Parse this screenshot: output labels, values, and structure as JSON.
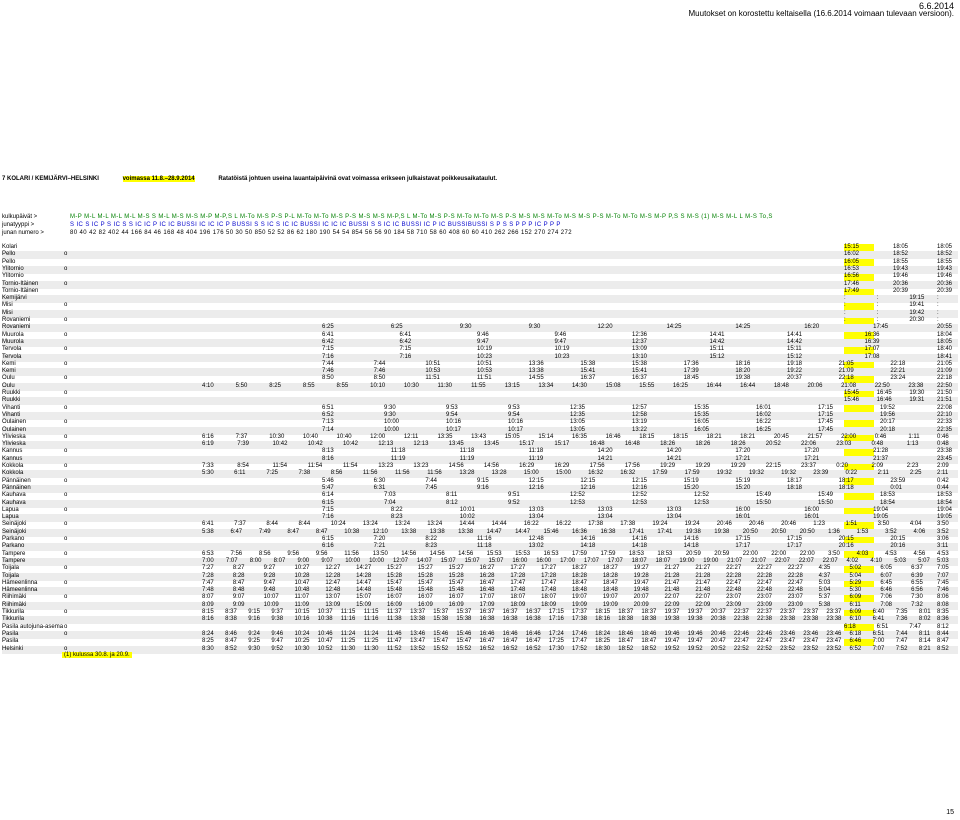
{
  "top": {
    "date": "6.6.2014",
    "note_line1": "Muutokset on korostettu keltaisella (16.6.2014 voimaan tulevaan versioon).",
    "note_line2": ""
  },
  "header": {
    "route": "7 KOLARI / KEMIJÄRVI–HELSINKI",
    "validity": "voimassa 11.8.–28.9.2014",
    "notice": "Ratatöistä johtuen useina lauantaipäivinä ovat voimassa erikseen julkaistavat poikkeusaikataulut."
  },
  "info": {
    "days_label": "kulkupäivät >",
    "types_label": "junatyyppi >",
    "numbers_label": "junan numero >",
    "days": "M-P M-L M-L M-L M-L M-S S M-L M-S M-S M-P M-P,S L M-To M-S P-S P-L M-To M-To M-S P-S M-S M-S M-P,S L M-To M-S P-S M-To M-To M-S P-S M-S M-S M-To M-S M-S P-S M-To M-To M-S M-P P,S S M-S (1) M-S M-L L M-S To,S",
    "types": "S IC S IC P S IC S S IC IC P IC IC BUSSI IC IC IC P BUSSI S S IC S IC IC BUSSI IC IC IC BUSSI S S IC IC BUSSI IC P IC BUSSIBUSSI S P S S P P P IC P P P",
    "numbers": "80 40 42 82 402 44 166 84 46 168 48 404 196 176 50 30 50 850 52 52 86 62 180 190 54 54 854 56 56 90 184 58 710 58 60 408 60 60 410 262 266 152 270 274 272"
  },
  "stations": [
    {
      "name": "Kolari",
      "o": ""
    },
    {
      "name": "Pello",
      "o": "o"
    },
    {
      "name": "Pello",
      "o": ""
    },
    {
      "name": "Ylitornio",
      "o": "o"
    },
    {
      "name": "Ylitornio",
      "o": ""
    },
    {
      "name": "Tornio-Itäinen",
      "o": "o"
    },
    {
      "name": "Tornio-Itäinen",
      "o": ""
    },
    {
      "name": "Kemijärvi",
      "o": ""
    },
    {
      "name": "Misi",
      "o": "o"
    },
    {
      "name": "Misi",
      "o": ""
    },
    {
      "name": "Rovaniemi",
      "o": "o"
    },
    {
      "name": "Rovaniemi",
      "o": ""
    },
    {
      "name": "Muurola",
      "o": "o"
    },
    {
      "name": "Muurola",
      "o": ""
    },
    {
      "name": "Tervola",
      "o": "o"
    },
    {
      "name": "Tervola",
      "o": ""
    },
    {
      "name": "Kemi",
      "o": "o"
    },
    {
      "name": "Kemi",
      "o": ""
    },
    {
      "name": "Oulu",
      "o": "o"
    },
    {
      "name": "Oulu",
      "o": ""
    },
    {
      "name": "Ruukki",
      "o": "o"
    },
    {
      "name": "Ruukki",
      "o": ""
    },
    {
      "name": "Vihanti",
      "o": "o"
    },
    {
      "name": "Vihanti",
      "o": ""
    },
    {
      "name": "Oulainen",
      "o": "o"
    },
    {
      "name": "Oulainen",
      "o": ""
    },
    {
      "name": "Ylivieska",
      "o": "o"
    },
    {
      "name": "Ylivieska",
      "o": ""
    },
    {
      "name": "Kannus",
      "o": "o"
    },
    {
      "name": "Kannus",
      "o": ""
    },
    {
      "name": "Kokkola",
      "o": "o"
    },
    {
      "name": "Kokkola",
      "o": ""
    },
    {
      "name": "Pännäinen",
      "o": "o"
    },
    {
      "name": "Pännäinen",
      "o": ""
    },
    {
      "name": "Kauhava",
      "o": "o"
    },
    {
      "name": "Kauhava",
      "o": ""
    },
    {
      "name": "Lapua",
      "o": "o"
    },
    {
      "name": "Lapua",
      "o": ""
    },
    {
      "name": "Seinäjoki",
      "o": "o"
    },
    {
      "name": "Seinäjoki",
      "o": ""
    },
    {
      "name": "Parkano",
      "o": "o"
    },
    {
      "name": "Parkano",
      "o": ""
    },
    {
      "name": "Tampere",
      "o": "o"
    },
    {
      "name": "Tampere",
      "o": ""
    },
    {
      "name": "Toijala",
      "o": "o"
    },
    {
      "name": "Toijala",
      "o": ""
    },
    {
      "name": "Hämeenlinna",
      "o": "o"
    },
    {
      "name": "Hämeenlinna",
      "o": ""
    },
    {
      "name": "Riihimäki",
      "o": "o"
    },
    {
      "name": "Riihimäki",
      "o": ""
    },
    {
      "name": "Tikkurila",
      "o": "o"
    },
    {
      "name": "Tikkurila",
      "o": ""
    },
    {
      "name": "Pasila autojuna-asema",
      "o": "o"
    },
    {
      "name": "Pasila",
      "o": "o"
    },
    {
      "name": "Pasila",
      "o": ""
    },
    {
      "name": "Helsinki",
      "o": "o"
    }
  ],
  "times": {
    "r0": [
      "15:15",
      "18:05",
      "18:05"
    ],
    "r1": [
      "16:02",
      "18:52",
      "18:52"
    ],
    "r2": [
      "16:05",
      "18:55",
      "18:55"
    ],
    "r3": [
      "16:53",
      "19:43",
      "19:43"
    ],
    "r4": [
      "16:56",
      "19:46",
      "19:46"
    ],
    "r5": [
      "17:46",
      "20:36",
      "20:36"
    ],
    "r6": [
      "17:49",
      "20:39",
      "20:39"
    ],
    "r7": [
      ":",
      ":",
      "19:15",
      ":"
    ],
    "r8": [
      ":",
      ":",
      "19:41",
      ":"
    ],
    "r9": [
      ":",
      ":",
      "19:42",
      ":"
    ],
    "r10": [
      ":",
      ":",
      "20:30",
      ":"
    ],
    "r11": [
      "6:25",
      "6:25",
      "9:30",
      "9:30",
      "12:20",
      "14:25",
      "14:25",
      "16:20",
      "17:45",
      "20:55"
    ],
    "r12": [
      "6:41",
      "6:41",
      "9:46",
      "9:46",
      "12:36",
      "14:41",
      "14:41",
      "16:36",
      "18:04"
    ],
    "r13": [
      "6:42",
      "6:42",
      "9:47",
      "9:47",
      "12:37",
      "14:42",
      "14:42",
      "16:39",
      "18:05"
    ],
    "r14": [
      "7:15",
      "7:15",
      "10:19",
      "10:19",
      "13:09",
      "15:11",
      "15:11",
      "17:07",
      "18:40"
    ],
    "r15": [
      "7:16",
      "7:16",
      "10:23",
      "10:23",
      "13:10",
      "15:12",
      "15:12",
      "17:08",
      "18:41"
    ],
    "r16": [
      "7:44",
      "7:44",
      "10:51",
      "10:51",
      "13:36",
      "15:38",
      "15:38",
      "17:36",
      "18:16",
      "19:18",
      "21:05",
      "22:18",
      "21:05"
    ],
    "r17": [
      "7:46",
      "7:46",
      "10:53",
      "10:53",
      "13:38",
      "15:41",
      "15:41",
      "17:39",
      "18:20",
      "19:22",
      "21:09",
      "22:21",
      "21:09"
    ],
    "r18": [
      "8:50",
      "8:50",
      "11:51",
      "11:51",
      "14:55",
      "16:37",
      "16:37",
      "18:45",
      "19:38",
      "20:37",
      "22:18",
      "23:24",
      "22:18"
    ],
    "r19": [
      "4:10",
      "5:50",
      "8:25",
      "8:55",
      "8:55",
      "10:10",
      "10:30",
      "11:30",
      "11:55",
      "13:15",
      "13:34",
      "14:30",
      "15:08",
      "15:55",
      "16:25",
      "16:44",
      "16:44",
      "18:48",
      "20:06",
      "21:08",
      "22:50",
      "23:38",
      "22:50"
    ],
    "r20": [
      "15:45",
      "16:45",
      "19:30",
      "21:50"
    ],
    "r21": [
      "15:46",
      "16:46",
      "19:31",
      "21:51"
    ],
    "r22": [
      "6:51",
      "9:30",
      "9:53",
      "9:53",
      "12:35",
      "12:57",
      "15:35",
      "16:01",
      "17:15",
      "19:52",
      "22:08"
    ],
    "r23": [
      "6:52",
      "9:30",
      "9:54",
      "9:54",
      "12:35",
      "12:58",
      "15:35",
      "16:02",
      "17:15",
      "19:56",
      "22:10"
    ],
    "r24": [
      "7:13",
      "10:00",
      "10:16",
      "10:16",
      "13:05",
      "13:19",
      "16:05",
      "16:22",
      "17:45",
      "20:17",
      "22:33"
    ],
    "r25": [
      "7:14",
      "10:00",
      "10:17",
      "10:17",
      "13:05",
      "13:22",
      "16:05",
      "16:25",
      "17:45",
      "20:18",
      "22:35"
    ],
    "r26": [
      "6:16",
      "7:37",
      "10:30",
      "10:40",
      "10:40",
      "12:00",
      "12:11",
      "13:35",
      "13:43",
      "15:05",
      "15:14",
      "16:35",
      "16:46",
      "18:15",
      "18:15",
      "18:21",
      "18:21",
      "20:45",
      "21:57",
      "22:00",
      "0:46",
      "1:11",
      "0:46"
    ],
    "r27": [
      "6:19",
      "7:39",
      "10:42",
      "10:42",
      "10:42",
      "12:13",
      "12:13",
      "13:45",
      "13:45",
      "15:17",
      "15:17",
      "16:48",
      "16:48",
      "18:26",
      "18:26",
      "18:26",
      "20:52",
      "22:06",
      "23:03",
      "0:48",
      "1:13",
      "0:48"
    ],
    "r28": [
      "8:13",
      "11:18",
      "11:18",
      "11:18",
      "14:20",
      "14:20",
      "17:20",
      "17:20",
      "21:28",
      "23:38"
    ],
    "r29": [
      "8:16",
      "11:19",
      "11:19",
      "11:19",
      "14:21",
      "14:21",
      "17:21",
      "17:21",
      "21:37",
      "23:45"
    ],
    "r30": [
      "7:33",
      "8:54",
      "11:54",
      "11:54",
      "11:54",
      "13:23",
      "13:23",
      "14:56",
      "14:56",
      "16:29",
      "16:29",
      "17:56",
      "17:56",
      "19:29",
      "19:29",
      "19:29",
      "22:15",
      "23:37",
      "0:20",
      "2:09",
      "2:23",
      "2:09"
    ],
    "r31": [
      "5:30",
      "6:11",
      "7:25",
      "7:38",
      "8:56",
      "11:56",
      "11:56",
      "11:56",
      "13:28",
      "13:28",
      "15:00",
      "15:00",
      "16:32",
      "16:32",
      "17:59",
      "17:59",
      "19:32",
      "19:32",
      "19:32",
      "23:39",
      "0:22",
      "2:11",
      "2:25",
      "2:11"
    ],
    "r32": [
      "5:46",
      "6:30",
      "7:44",
      "9:15",
      "12:15",
      "12:15",
      "12:15",
      "15:19",
      "15:19",
      "18:17",
      "18:17",
      "23:59",
      "0:42"
    ],
    "r33": [
      "5:47",
      "6:31",
      "7:45",
      "9:16",
      "12:16",
      "12:16",
      "12:16",
      "15:20",
      "15:20",
      "18:18",
      "18:18",
      "0:01",
      "0:44"
    ],
    "r34": [
      "6:14",
      "7:03",
      "8:11",
      "9:51",
      "12:52",
      "12:52",
      "12:52",
      "15:49",
      "15:49",
      "18:53",
      "18:53"
    ],
    "r35": [
      "6:15",
      "7:04",
      "8:12",
      "9:52",
      "12:53",
      "12:53",
      "12:53",
      "15:50",
      "15:50",
      "18:54",
      "18:54"
    ],
    "r36": [
      "7:15",
      "8:22",
      "10:01",
      "13:03",
      "13:03",
      "13:03",
      "16:00",
      "16:00",
      "19:04",
      "19:04"
    ],
    "r37": [
      "7:16",
      "8:23",
      "10:02",
      "13:04",
      "13:04",
      "13:04",
      "16:01",
      "16:01",
      "19:05",
      "19:05"
    ],
    "r38": [
      "6:41",
      "7:37",
      "8:44",
      "8:44",
      "10:24",
      "13:24",
      "13:24",
      "13:24",
      "14:44",
      "14:44",
      "16:22",
      "16:22",
      "17:38",
      "17:38",
      "19:24",
      "19:24",
      "20:46",
      "20:46",
      "20:46",
      "1:23",
      "1:51",
      "3:50",
      "4:04",
      "3:50"
    ],
    "r39": [
      "5:38",
      "6:47",
      "7:49",
      "8:47",
      "8:47",
      "10:38",
      "12:10",
      "13:38",
      "13:38",
      "13:38",
      "14:47",
      "14:47",
      "15:46",
      "16:36",
      "16:38",
      "17:41",
      "17:41",
      "19:38",
      "19:38",
      "20:50",
      "20:50",
      "20:50",
      "1:36",
      "1:53",
      "3:52",
      "4:06",
      "3:52"
    ],
    "r40": [
      "6:15",
      "7:20",
      "8:22",
      "11:16",
      "12:48",
      "14:16",
      "14:16",
      "14:16",
      "17:15",
      "17:15",
      "20:15",
      "20:15",
      "3:06"
    ],
    "r41": [
      "6:16",
      "7:21",
      "8:23",
      "11:18",
      "13:02",
      "14:18",
      "14:18",
      "14:18",
      "17:17",
      "17:17",
      "20:16",
      "20:16",
      "3:11"
    ],
    "r42": [
      "6:53",
      "7:56",
      "8:56",
      "9:56",
      "9:56",
      "11:56",
      "13:50",
      "14:56",
      "14:56",
      "14:56",
      "15:53",
      "15:53",
      "16:53",
      "17:59",
      "17:59",
      "18:53",
      "18:53",
      "20:59",
      "20:59",
      "22:00",
      "22:00",
      "22:00",
      "3:50",
      "4:03",
      "4:53",
      "4:56",
      "4:53"
    ],
    "r43": [
      "7:00",
      "7:07",
      "8:00",
      "8:07",
      "9:00",
      "9:07",
      "10:00",
      "10:00",
      "12:07",
      "14:07",
      "15:07",
      "15:07",
      "15:07",
      "16:00",
      "16:00",
      "17:00",
      "17:07",
      "17:07",
      "18:07",
      "18:07",
      "19:00",
      "19:00",
      "21:07",
      "21:07",
      "22:07",
      "22:07",
      "22:07",
      "4:02",
      "4:10",
      "5:03",
      "5:07",
      "5:03"
    ],
    "r44": [
      "7:27",
      "8:27",
      "9:27",
      "10:27",
      "12:27",
      "14:27",
      "15:27",
      "15:27",
      "15:27",
      "16:27",
      "17:27",
      "17:27",
      "18:27",
      "18:27",
      "19:27",
      "21:27",
      "21:27",
      "22:27",
      "22:27",
      "22:27",
      "4:35",
      "5:02",
      "6:05",
      "6:37",
      "7:05"
    ],
    "r45": [
      "7:28",
      "8:28",
      "9:28",
      "10:28",
      "12:28",
      "14:28",
      "15:28",
      "15:28",
      "15:28",
      "16:28",
      "17:28",
      "17:28",
      "18:28",
      "18:28",
      "19:28",
      "21:28",
      "21:28",
      "22:28",
      "22:28",
      "22:28",
      "4:37",
      "5:04",
      "6:07",
      "6:39",
      "7:07"
    ],
    "r46": [
      "7:47",
      "8:47",
      "9:47",
      "10:47",
      "12:47",
      "14:47",
      "15:47",
      "15:47",
      "15:47",
      "16:47",
      "17:47",
      "17:47",
      "18:47",
      "18:47",
      "19:47",
      "21:47",
      "21:47",
      "22:47",
      "22:47",
      "22:47",
      "5:03",
      "5:29",
      "6:45",
      "6:55",
      "7:45"
    ],
    "r47": [
      "7:48",
      "8:48",
      "9:48",
      "10:48",
      "12:48",
      "14:48",
      "15:48",
      "15:48",
      "15:48",
      "16:48",
      "17:48",
      "17:48",
      "18:48",
      "18:48",
      "19:48",
      "21:48",
      "21:48",
      "22:48",
      "22:48",
      "22:48",
      "5:04",
      "5:30",
      "6:46",
      "6:56",
      "7:46"
    ],
    "r48": [
      "8:07",
      "9:07",
      "10:07",
      "11:07",
      "13:07",
      "15:07",
      "16:07",
      "16:07",
      "16:07",
      "17:07",
      "18:07",
      "18:07",
      "19:07",
      "19:07",
      "20:07",
      "22:07",
      "22:07",
      "23:07",
      "23:07",
      "23:07",
      "5:37",
      "6:09",
      "7:06",
      "7:30",
      "8:06"
    ],
    "r49": [
      "8:09",
      "9:09",
      "10:09",
      "11:09",
      "13:09",
      "15:09",
      "16:09",
      "16:09",
      "16:09",
      "17:09",
      "18:09",
      "18:09",
      "19:09",
      "19:09",
      "20:09",
      "22:09",
      "22:09",
      "23:09",
      "23:09",
      "23:09",
      "5:38",
      "6:11",
      "7:08",
      "7:32",
      "8:08"
    ],
    "r50": [
      "8:15",
      "8:37",
      "9:15",
      "9:37",
      "10:15",
      "10:37",
      "11:15",
      "11:15",
      "11:37",
      "13:37",
      "15:37",
      "15:37",
      "16:37",
      "16:37",
      "16:37",
      "17:15",
      "17:37",
      "18:15",
      "18:37",
      "18:37",
      "19:37",
      "19:37",
      "20:37",
      "22:37",
      "22:37",
      "23:37",
      "23:37",
      "23:37",
      "6:09",
      "6:40",
      "7:35",
      "8:01",
      "8:35"
    ],
    "r51": [
      "8:16",
      "8:38",
      "9:16",
      "9:38",
      "10:16",
      "10:38",
      "11:16",
      "11:16",
      "11:38",
      "13:38",
      "15:38",
      "15:38",
      "16:38",
      "16:38",
      "16:38",
      "17:16",
      "17:38",
      "18:16",
      "18:38",
      "18:38",
      "19:38",
      "19:38",
      "20:38",
      "22:38",
      "22:38",
      "23:38",
      "23:38",
      "23:38",
      "6:10",
      "6:41",
      "7:36",
      "8:02",
      "8:36"
    ],
    "r52": [
      "6:18",
      "6:51",
      "7:47",
      "8:12"
    ],
    "r53": [
      "8:24",
      "8:46",
      "9:24",
      "9:46",
      "10:24",
      "10:46",
      "11:24",
      "11:24",
      "11:46",
      "13:46",
      "15:46",
      "15:46",
      "16:46",
      "16:46",
      "16:46",
      "17:24",
      "17:46",
      "18:24",
      "18:46",
      "18:46",
      "19:46",
      "19:46",
      "20:46",
      "22:46",
      "22:46",
      "23:46",
      "23:46",
      "23:46",
      "6:18",
      "6:51",
      "7:44",
      "8:11",
      "8:44"
    ],
    "r54": [
      "8:25",
      "8:47",
      "9:25",
      "9:47",
      "10:25",
      "10:47",
      "11:25",
      "11:25",
      "11:47",
      "13:47",
      "15:47",
      "15:47",
      "16:47",
      "16:47",
      "16:47",
      "17:25",
      "17:47",
      "18:25",
      "18:47",
      "18:47",
      "19:47",
      "19:47",
      "20:47",
      "22:47",
      "22:47",
      "23:47",
      "23:47",
      "23:47",
      "6:46",
      "7:00",
      "7:47",
      "8:14",
      "8:47"
    ],
    "r55": [
      "8:30",
      "8:52",
      "9:30",
      "9:52",
      "10:30",
      "10:52",
      "11:30",
      "11:30",
      "11:52",
      "13:52",
      "15:52",
      "15:52",
      "16:52",
      "16:52",
      "16:52",
      "17:30",
      "17:52",
      "18:30",
      "18:52",
      "18:52",
      "19:52",
      "19:52",
      "20:52",
      "22:52",
      "22:52",
      "23:52",
      "23:52",
      "23:52",
      "6:52",
      "7:07",
      "7:52",
      "8:21",
      "8:52"
    ]
  },
  "footnote": "(1) kulussa 30.8. ja 20.9.",
  "page_number": "15",
  "colors": {
    "highlight": "#ffff00",
    "green": "#008000",
    "blue": "#0000cc"
  }
}
